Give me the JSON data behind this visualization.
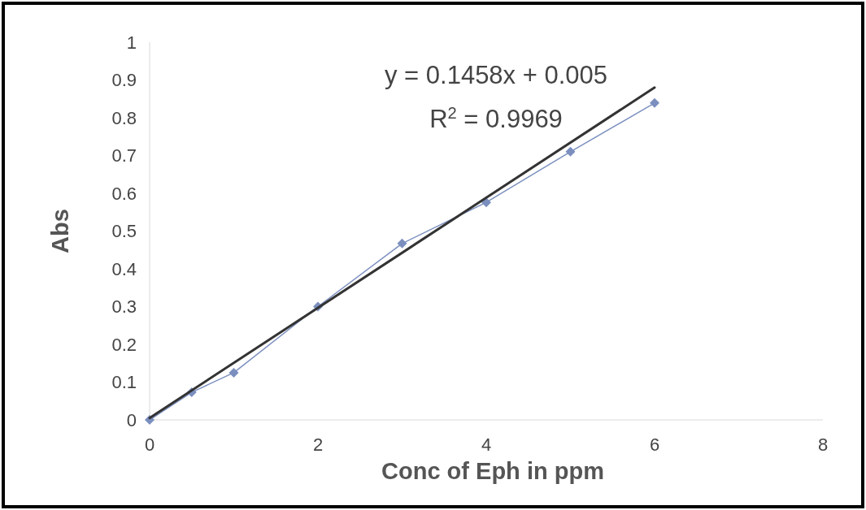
{
  "chart_data": {
    "type": "line",
    "xlabel": "Conc of Eph in ppm",
    "ylabel": "Abs",
    "xlim": [
      0,
      8
    ],
    "xticks": [
      0,
      2,
      4,
      6,
      8
    ],
    "ylim": [
      0,
      1
    ],
    "yticks": [
      0,
      0.1,
      0.2,
      0.3,
      0.4,
      0.5,
      0.6,
      0.7,
      0.8,
      0.9,
      1
    ],
    "x": [
      0,
      0.5,
      1,
      2,
      3,
      4,
      5,
      6
    ],
    "grid": false,
    "series": [
      {
        "color": "#7b8fbf",
        "marker": "diamond",
        "values": [
          0,
          0.073,
          0.125,
          0.3,
          0.467,
          0.576,
          0.71,
          0.839
        ]
      },
      {
        "color": "#333333",
        "marker": "none",
        "x": [
          0,
          6
        ],
        "values": [
          0.005,
          0.88
        ]
      }
    ],
    "annotations": [
      "y = 0.1458x + 0.005",
      "R$^{2}$ = 0.9969"
    ]
  }
}
